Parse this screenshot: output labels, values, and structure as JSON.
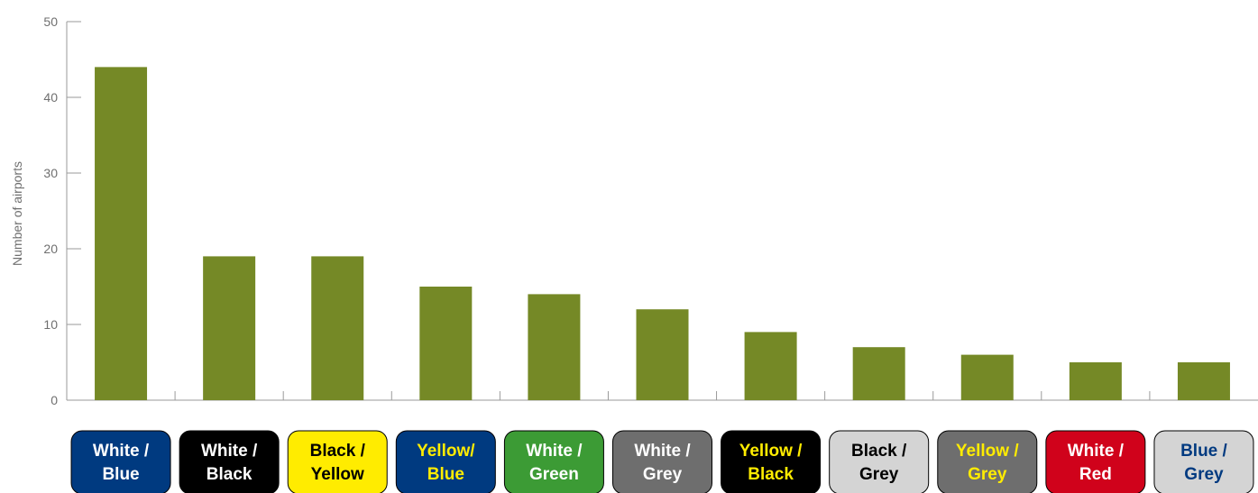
{
  "chart_data": {
    "type": "bar",
    "ylabel": "Number of airports",
    "ylim": [
      0,
      50
    ],
    "yticks": [
      0,
      10,
      20,
      30,
      40,
      50
    ],
    "grid": false,
    "bar_color": "#758926",
    "categories": [
      {
        "lines": [
          "White /",
          "Blue"
        ],
        "fill": "#003a80",
        "text": "#ffffff"
      },
      {
        "lines": [
          "White /",
          "Black"
        ],
        "fill": "#000000",
        "text": "#ffffff"
      },
      {
        "lines": [
          "Black /",
          "Yellow"
        ],
        "fill": "#ffec00",
        "text": "#000000"
      },
      {
        "lines": [
          "Yellow/",
          "Blue"
        ],
        "fill": "#003a80",
        "text": "#ffec00"
      },
      {
        "lines": [
          "White /",
          "Green"
        ],
        "fill": "#3c9b35",
        "text": "#ffffff"
      },
      {
        "lines": [
          "White /",
          "Grey"
        ],
        "fill": "#6e6e6e",
        "text": "#ffffff"
      },
      {
        "lines": [
          "Yellow /",
          "Black"
        ],
        "fill": "#000000",
        "text": "#ffec00"
      },
      {
        "lines": [
          "Black /",
          "Grey"
        ],
        "fill": "#d4d4d4",
        "text": "#000000"
      },
      {
        "lines": [
          "Yellow /",
          "Grey"
        ],
        "fill": "#6e6e6e",
        "text": "#ffec00"
      },
      {
        "lines": [
          "White /",
          "Red"
        ],
        "fill": "#d0021b",
        "text": "#ffffff"
      },
      {
        "lines": [
          "Blue /",
          "Grey"
        ],
        "fill": "#d4d4d4",
        "text": "#003a80"
      }
    ],
    "values": [
      44,
      19,
      19,
      15,
      14,
      12,
      9,
      7,
      6,
      5,
      5
    ]
  }
}
